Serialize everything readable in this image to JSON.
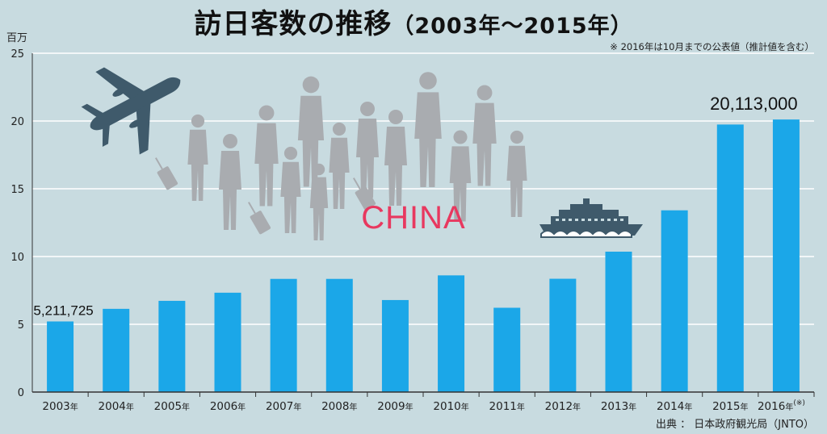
{
  "title": "訪日客数の推移",
  "title_period": "（2003年〜2015年）",
  "note": "※ 2016年は10月までの公表値（推計値を含む）",
  "unit": "百万",
  "source": "出典 ： 日本政府観光局（JNTO）",
  "overlay_text": "CHINA",
  "colors": {
    "bar": "#1ba7e8",
    "background": "#c8dbe0",
    "grid": "#ffffff",
    "china": "#e8385f",
    "silhouette": "#a9acb0",
    "vehicle": "#3f5a6b"
  },
  "icons": [
    "airplane-icon",
    "cruise-ship-icon",
    "people-silhouettes"
  ],
  "chart_data": {
    "type": "bar",
    "categories": [
      "2003年",
      "2004年",
      "2005年",
      "2006年",
      "2007年",
      "2008年",
      "2009年",
      "2010年",
      "2011年",
      "2012年",
      "2013年",
      "2014年",
      "2015年",
      "2016年"
    ],
    "category_suffix_note": "(※)",
    "values": [
      5.21,
      6.14,
      6.73,
      7.33,
      8.35,
      8.35,
      6.79,
      8.61,
      6.22,
      8.36,
      10.36,
      13.41,
      19.74,
      20.11
    ],
    "ylim": [
      0,
      25
    ],
    "yticks": [
      0,
      5,
      10,
      15,
      20,
      25
    ],
    "ylabel": "百万",
    "grid": true,
    "data_labels": [
      {
        "index": 0,
        "text": "5,211,725"
      },
      {
        "index": 13,
        "text": "20,113,000"
      }
    ]
  }
}
